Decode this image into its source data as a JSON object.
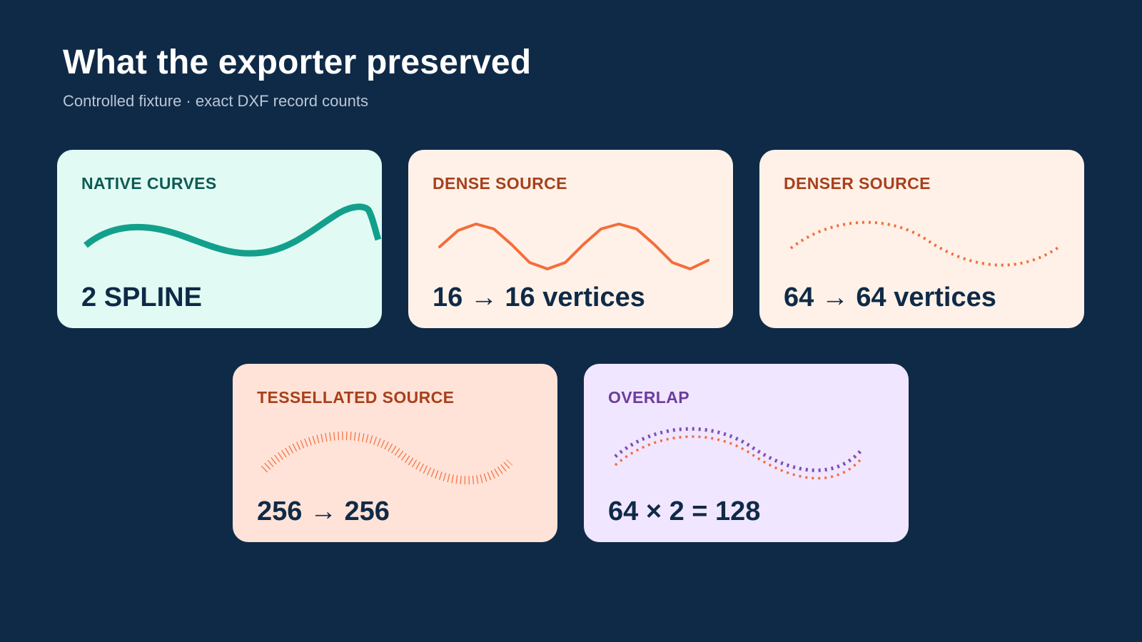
{
  "header": {
    "title": "What the exporter preserved",
    "subtitle": "Controlled fixture · exact DXF record counts"
  },
  "colors": {
    "background": "#0f2a47",
    "teal": "#12a08c",
    "orange": "#f46d3b",
    "purple": "#7b52b3"
  },
  "cards": [
    {
      "label": "NATIVE CURVES",
      "value": "2 SPLINE",
      "icon": "smooth-spline-curve"
    },
    {
      "label": "DENSE SOURCE",
      "value": "16 → 16 vertices",
      "icon": "polyline-curve"
    },
    {
      "label": "DENSER SOURCE",
      "value": "64 → 64 vertices",
      "icon": "dashed-curve"
    },
    {
      "label": "TESSELLATED SOURCE",
      "value": "256 → 256",
      "icon": "tick-curve"
    },
    {
      "label": "OVERLAP",
      "value": "64 × 2 = 128",
      "icon": "overlapping-dashed-curves"
    }
  ]
}
